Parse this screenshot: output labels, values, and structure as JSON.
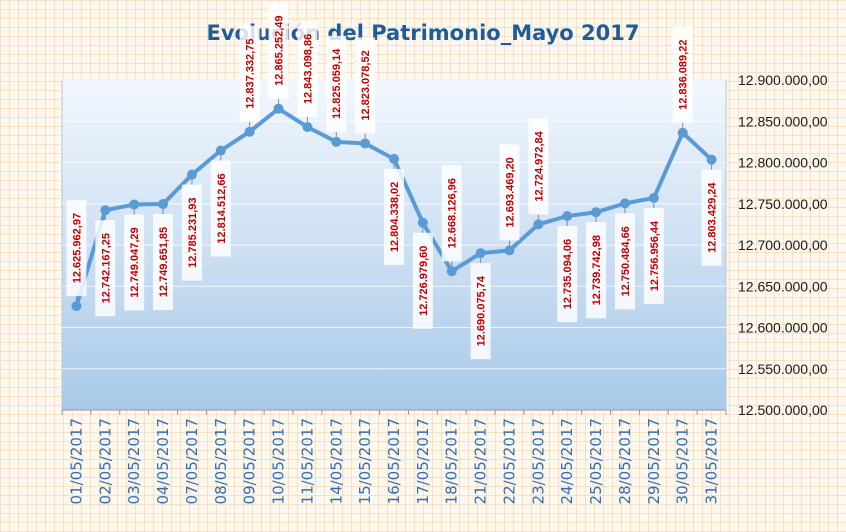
{
  "chart_data": {
    "type": "line",
    "title": "Evolución del Patrimonio_Mayo 2017",
    "xlabel": "",
    "ylabel": "",
    "ylim": [
      12500000,
      12900000
    ],
    "y_ticks": [
      "12.500.000,00",
      "12.550.000,00",
      "12.600.000,00",
      "12.650.000,00",
      "12.700.000,00",
      "12.750.000,00",
      "12.800.000,00",
      "12.850.000,00",
      "12.900.000,00"
    ],
    "y_axis_position": "right",
    "grid": true,
    "legend": "none",
    "categories": [
      "01/05/2017",
      "02/05/2017",
      "03/05/2017",
      "04/05/2017",
      "07/05/2017",
      "08/05/2017",
      "09/05/2017",
      "10/05/2017",
      "11/05/2017",
      "14/05/2017",
      "15/05/2017",
      "16/05/2017",
      "17/05/2017",
      "18/05/2017",
      "21/05/2017",
      "22/05/2017",
      "23/05/2017",
      "24/05/2017",
      "25/05/2017",
      "28/05/2017",
      "29/05/2017",
      "30/05/2017",
      "31/05/2017"
    ],
    "values": [
      12625962.97,
      12742167.25,
      12749047.29,
      12749651.85,
      12785231.93,
      12814512.66,
      12837332.75,
      12865252.49,
      12843098.86,
      12825059.14,
      12823078.52,
      12804338.02,
      12726979.6,
      12668126.96,
      12690075.74,
      12693469.2,
      12724972.84,
      12735094.06,
      12739742.98,
      12750484.66,
      12756956.44,
      12836089.22,
      12803429.24
    ],
    "data_labels": [
      "12.625.962,97",
      "12.742.167,25",
      "12.749.047,29",
      "12.749.651,85",
      "12.785.231,93",
      "12.814.512,66",
      "12.837.332,75",
      "12.865.252,49",
      "12.843.098,86",
      "12.825.059,14",
      "12.823.078,52",
      "12.804.338,02",
      "12.726.979,60",
      "12.668.126,96",
      "12.690.075,74",
      "12.693.469,20",
      "12.724.972,84",
      "12.735.094,06",
      "12.739.742,98",
      "12.750.484,66",
      "12.756.956,44",
      "12.836.089,22",
      "12.803.429,24"
    ],
    "colors": {
      "line": "#5b9bd5",
      "label_text": "#c00000",
      "title": "#1f5c99",
      "x_tick": "#2e6fb8",
      "plot_top": "#f2f7fd",
      "plot_bottom": "#a9c9e8"
    }
  }
}
